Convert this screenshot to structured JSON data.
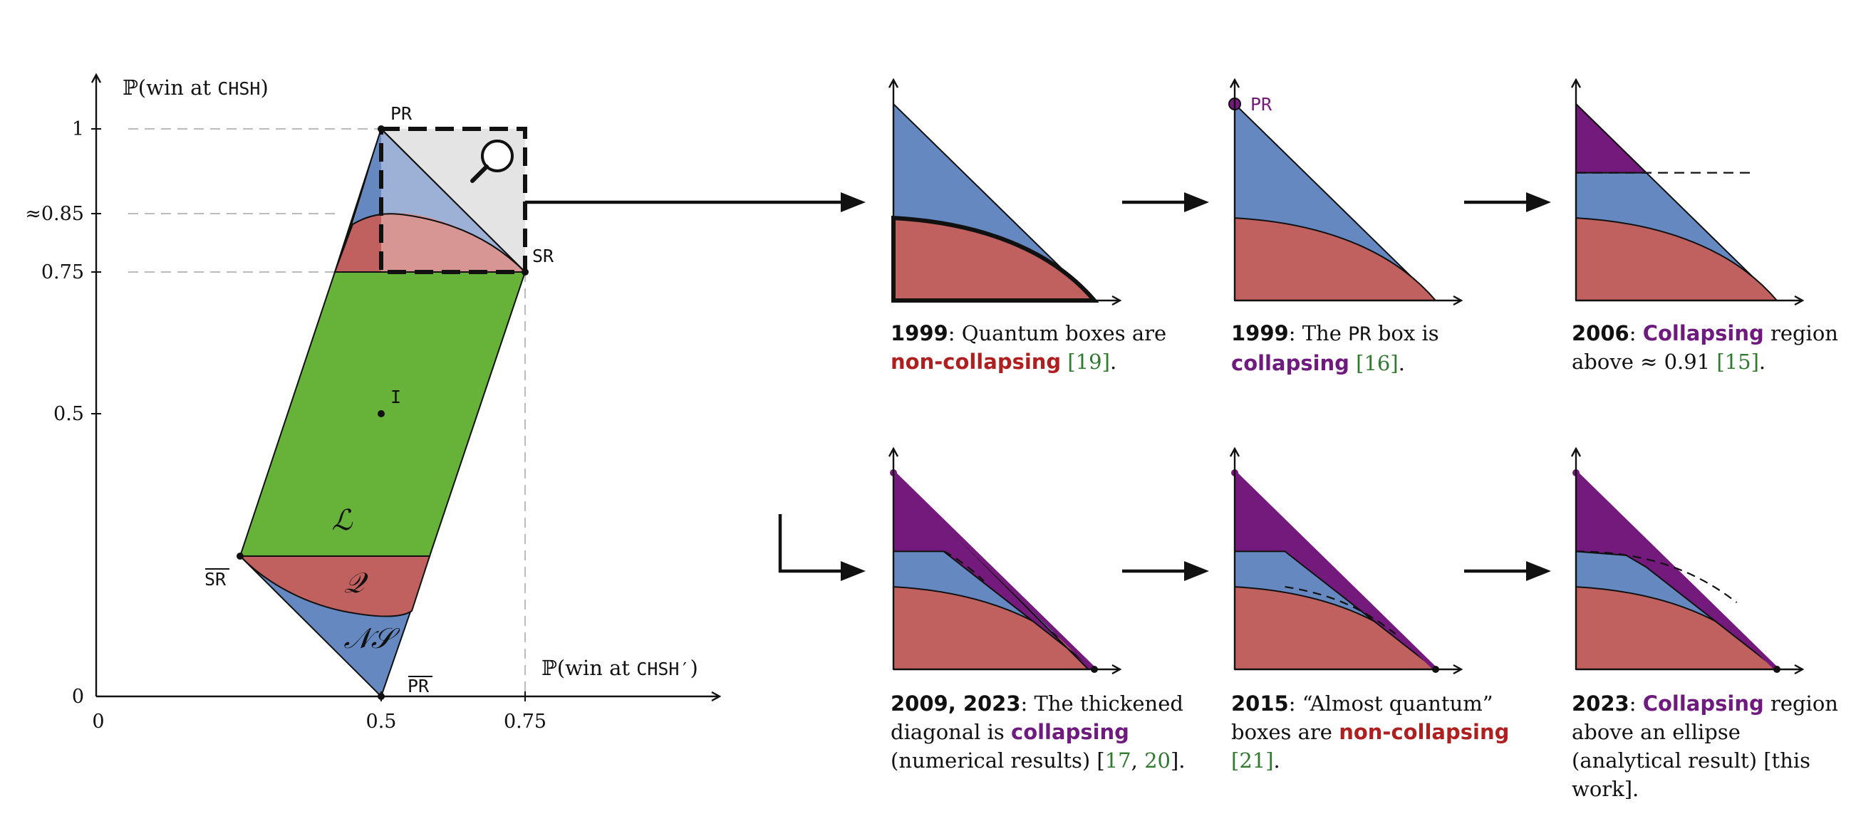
{
  "colors": {
    "local": "#67b33a",
    "quantum": "#c0615f",
    "nosignal": "#6688c1",
    "collapsing": "#741a7c",
    "zoom_box": "#e4e4e4",
    "citation": "#2f7a2f"
  },
  "main_plot": {
    "y_axis_label_prefix": "ℙ(win at ",
    "y_axis_label_game": "CHSH",
    "y_axis_label_suffix": ")",
    "x_axis_label_prefix": "ℙ(win at ",
    "x_axis_label_game": "CHSH′",
    "x_axis_label_suffix": ")",
    "y_ticks": [
      "1",
      "≈0.85",
      "0.75",
      "0.5",
      "0"
    ],
    "x_ticks": [
      "0",
      "0.5",
      "0.75"
    ],
    "points": {
      "pr": "PR",
      "sr": "SR",
      "sr_bar": "SR",
      "pr_bar": "PR",
      "iso": "I"
    },
    "regions": {
      "local": "ℒ",
      "quantum": "𝒬",
      "nosignal": "𝒩𝒮"
    },
    "zoom_icon": "magnifier-icon"
  },
  "panels": [
    {
      "pr_label": "",
      "caption": [
        {
          "t": "1999",
          "s": "year"
        },
        {
          "t": ":  Quantum boxes are ",
          "s": ""
        },
        {
          "t": "non-collapsing",
          "s": "noncoll"
        },
        {
          "t": " ",
          "s": ""
        },
        {
          "t": "[19]",
          "s": "cite"
        },
        {
          "t": ".",
          "s": ""
        }
      ]
    },
    {
      "pr_label": "PR",
      "caption": [
        {
          "t": "1999",
          "s": "year"
        },
        {
          "t": ":  The ",
          "s": ""
        },
        {
          "t": "PR",
          "s": "mono"
        },
        {
          "t": " box is ",
          "s": ""
        },
        {
          "t": "collapsing",
          "s": "coll"
        },
        {
          "t": " ",
          "s": ""
        },
        {
          "t": "[16]",
          "s": "cite"
        },
        {
          "t": ".",
          "s": ""
        }
      ]
    },
    {
      "pr_label": "",
      "caption": [
        {
          "t": "2006",
          "s": "year"
        },
        {
          "t": ":  ",
          "s": ""
        },
        {
          "t": "Collapsing",
          "s": "coll"
        },
        {
          "t": " region above ≈ 0.91 ",
          "s": ""
        },
        {
          "t": "[15]",
          "s": "cite"
        },
        {
          "t": ".",
          "s": ""
        }
      ]
    },
    {
      "pr_label": "",
      "caption": [
        {
          "t": "2009, 2023",
          "s": "year"
        },
        {
          "t": ":  The thickened diagonal is ",
          "s": ""
        },
        {
          "t": "collapsing",
          "s": "coll"
        },
        {
          "t": " (numerical results) [",
          "s": ""
        },
        {
          "t": "17",
          "s": "cite"
        },
        {
          "t": ", ",
          "s": ""
        },
        {
          "t": "20",
          "s": "cite"
        },
        {
          "t": "].",
          "s": ""
        }
      ]
    },
    {
      "pr_label": "",
      "caption": [
        {
          "t": "2015",
          "s": "year"
        },
        {
          "t": ":  “Almost quantum” boxes are ",
          "s": ""
        },
        {
          "t": "non-collapsing",
          "s": "noncoll"
        },
        {
          "t": " ",
          "s": ""
        },
        {
          "t": "[21]",
          "s": "cite"
        },
        {
          "t": ".",
          "s": ""
        }
      ]
    },
    {
      "pr_label": "",
      "caption": [
        {
          "t": "2023",
          "s": "year"
        },
        {
          "t": ":  ",
          "s": ""
        },
        {
          "t": "Collapsing",
          "s": "coll"
        },
        {
          "t": " region above an ellipse (analytical result) [this work].",
          "s": ""
        }
      ]
    }
  ]
}
